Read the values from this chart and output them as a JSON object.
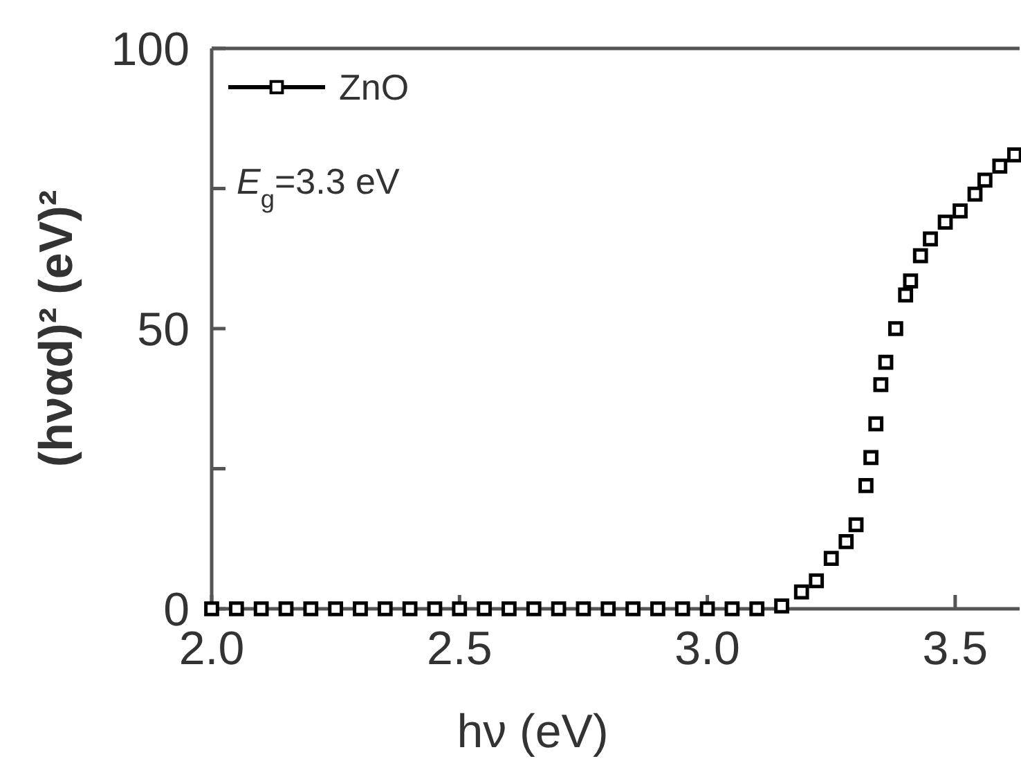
{
  "chart_data": {
    "type": "scatter",
    "xlabel": "hν (eV)",
    "ylabel": "(hναd)² (eV)²",
    "annotations": [
      "E$_{g}$=3.3 eV"
    ],
    "x": [
      2.0,
      2.05,
      2.1,
      2.15,
      2.2,
      2.25,
      2.3,
      2.35,
      2.4,
      2.45,
      2.5,
      2.55,
      2.6,
      2.65,
      2.7,
      2.75,
      2.8,
      2.85,
      2.9,
      2.95,
      3.0,
      3.05,
      3.1,
      3.15,
      3.19,
      3.22,
      3.25,
      3.28,
      3.3,
      3.32,
      3.33,
      3.34,
      3.35,
      3.36,
      3.38,
      3.4,
      3.41,
      3.43,
      3.45,
      3.48,
      3.51,
      3.54,
      3.56,
      3.59,
      3.62
    ],
    "series": [
      {
        "name": "ZnO",
        "color": "#000000",
        "values": [
          0,
          0,
          0,
          0,
          0,
          0,
          0,
          0,
          0,
          0,
          0,
          0,
          0,
          0,
          0,
          0,
          0,
          0,
          0,
          0,
          0,
          0,
          0,
          0.5,
          3,
          5,
          9,
          12,
          15,
          22,
          27,
          33,
          40,
          44,
          50,
          56,
          58.5,
          63,
          66,
          69,
          71,
          74,
          76.5,
          79,
          81
        ]
      }
    ],
    "marker": "square",
    "line_style": "solid",
    "legend": "top left",
    "grid": false,
    "xlim": [
      2.0,
      3.63
    ],
    "xticks": [
      {
        "value": 2.0,
        "label": "2.0"
      },
      {
        "value": 2.5,
        "label": "2.5"
      },
      {
        "value": 3.0,
        "label": "3.0"
      },
      {
        "value": 3.5,
        "label": "3.5"
      }
    ],
    "ylim": [
      0,
      100
    ],
    "yticks": [
      0,
      {
        "value": 25,
        "label": null
      },
      50,
      {
        "value": 75,
        "label": null
      },
      100
    ]
  }
}
